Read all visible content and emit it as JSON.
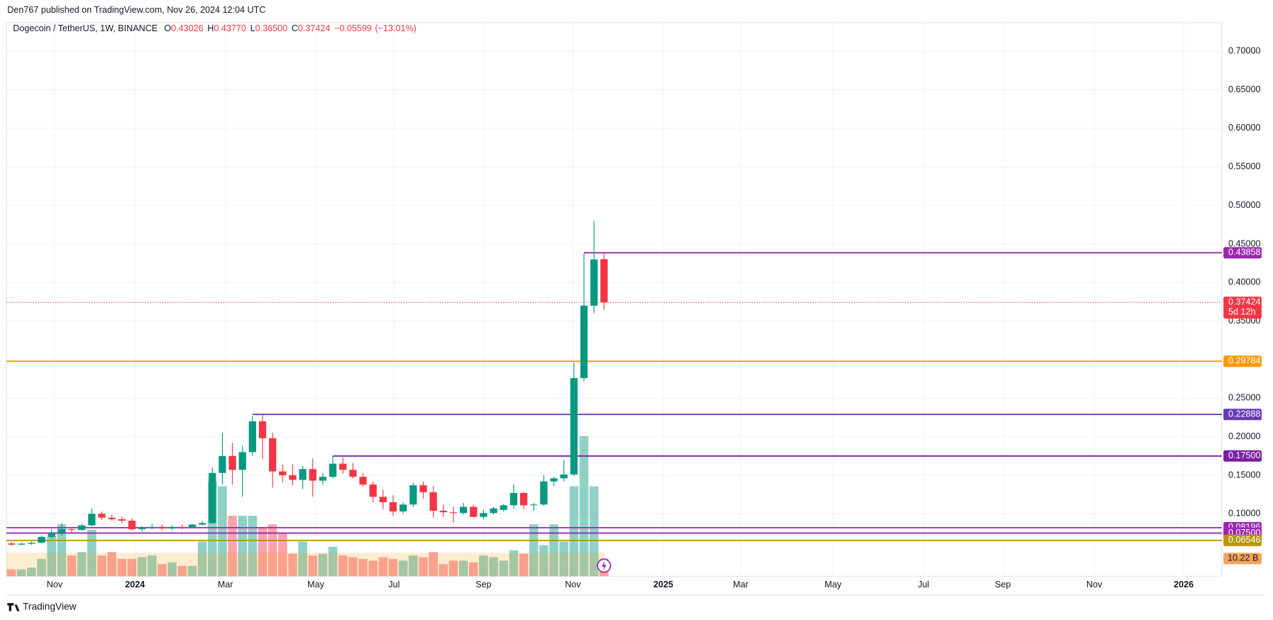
{
  "chart_data": {
    "type": "candlestick",
    "publisher": "Den767 published on TradingView.com, Nov 26, 2024 12:04 UTC",
    "symbol": "Dogecoin / TetherUS, 1W, BINANCE",
    "ohlc_legend": [
      {
        "name": "O",
        "value": {
          "value": 0.43026,
          "label": "0.43026"
        }
      },
      {
        "name": "H",
        "value": {
          "value": 0.4377,
          "label": "0.43770"
        }
      },
      {
        "name": "L",
        "value": {
          "value": 0.365,
          "label": "0.36500"
        }
      },
      {
        "name": "C",
        "value": {
          "value": 0.37424,
          "label": "0.37424"
        }
      }
    ],
    "change": {
      "value": -0.05599,
      "label": "−0.05599"
    },
    "change_percent": {
      "value": -13.01,
      "label": "(−13.01%)"
    },
    "up_color": "#089981",
    "down_color": "#f23645",
    "x": [
      0,
      1,
      2,
      3,
      4,
      5,
      6,
      7,
      8,
      9,
      10,
      11,
      12,
      13,
      14,
      15,
      16,
      17,
      18,
      19,
      20,
      21,
      22,
      23,
      24,
      25,
      26,
      27,
      28,
      29,
      30,
      31,
      32,
      33,
      34,
      35,
      36,
      37,
      38,
      39,
      40,
      41,
      42,
      43,
      44,
      45,
      46,
      47,
      48,
      49,
      50,
      51,
      52,
      53,
      54,
      55,
      56,
      57,
      58,
      59
    ],
    "open": [
      0.0615,
      0.06,
      0.0612,
      0.0625,
      0.07,
      0.075,
      0.08,
      0.079,
      0.085,
      0.1,
      0.095,
      0.093,
      0.091,
      0.08,
      0.082,
      0.083,
      0.081,
      0.083,
      0.082,
      0.086,
      0.088,
      0.153,
      0.175,
      0.157,
      0.18,
      0.22,
      0.198,
      0.155,
      0.15,
      0.144,
      0.158,
      0.143,
      0.148,
      0.165,
      0.157,
      0.148,
      0.138,
      0.122,
      0.115,
      0.103,
      0.112,
      0.137,
      0.128,
      0.104,
      0.102,
      0.101,
      0.109,
      0.096,
      0.101,
      0.105,
      0.111,
      0.127,
      0.111,
      0.112,
      0.142,
      0.146,
      0.151,
      0.276,
      0.37,
      0.43026
    ],
    "high": [
      0.0635,
      0.0625,
      0.064,
      0.072,
      0.08,
      0.088,
      0.082,
      0.087,
      0.107,
      0.103,
      0.099,
      0.096,
      0.094,
      0.084,
      0.087,
      0.086,
      0.085,
      0.086,
      0.087,
      0.091,
      0.16,
      0.205,
      0.192,
      0.188,
      0.227,
      0.228,
      0.205,
      0.164,
      0.164,
      0.162,
      0.172,
      0.153,
      0.175,
      0.173,
      0.166,
      0.153,
      0.142,
      0.131,
      0.124,
      0.115,
      0.14,
      0.142,
      0.136,
      0.112,
      0.109,
      0.114,
      0.112,
      0.105,
      0.109,
      0.113,
      0.138,
      0.128,
      0.114,
      0.15,
      0.148,
      0.17,
      0.296,
      0.438,
      0.48,
      0.4377
    ],
    "low": [
      0.0585,
      0.059,
      0.06,
      0.062,
      0.068,
      0.072,
      0.076,
      0.078,
      0.084,
      0.092,
      0.091,
      0.088,
      0.078,
      0.077,
      0.08,
      0.079,
      0.079,
      0.08,
      0.081,
      0.085,
      0.087,
      0.138,
      0.138,
      0.122,
      0.175,
      0.171,
      0.134,
      0.141,
      0.137,
      0.132,
      0.122,
      0.138,
      0.146,
      0.152,
      0.146,
      0.135,
      0.115,
      0.106,
      0.097,
      0.1,
      0.109,
      0.12,
      0.095,
      0.096,
      0.088,
      0.099,
      0.095,
      0.093,
      0.099,
      0.103,
      0.106,
      0.106,
      0.104,
      0.11,
      0.136,
      0.142,
      0.149,
      0.272,
      0.36,
      0.365
    ],
    "close": [
      0.06,
      0.0612,
      0.0625,
      0.07,
      0.075,
      0.08,
      0.079,
      0.085,
      0.1,
      0.095,
      0.093,
      0.091,
      0.08,
      0.082,
      0.083,
      0.081,
      0.083,
      0.082,
      0.086,
      0.088,
      0.153,
      0.175,
      0.157,
      0.18,
      0.22,
      0.198,
      0.155,
      0.15,
      0.144,
      0.158,
      0.143,
      0.148,
      0.165,
      0.157,
      0.148,
      0.138,
      0.122,
      0.115,
      0.103,
      0.112,
      0.137,
      0.128,
      0.104,
      0.102,
      0.101,
      0.109,
      0.096,
      0.101,
      0.107,
      0.111,
      0.127,
      0.111,
      0.112,
      0.142,
      0.146,
      0.151,
      0.276,
      0.37,
      0.43,
      0.37424
    ],
    "volume": [
      4,
      4,
      5,
      10,
      23,
      30,
      12,
      14,
      27,
      12,
      14,
      10,
      10,
      11,
      12,
      7,
      8,
      6,
      6,
      20,
      55,
      52,
      35,
      35,
      35,
      28,
      30,
      25,
      13,
      20,
      12,
      13,
      17,
      12,
      11,
      10,
      9,
      11,
      10,
      9,
      12,
      11,
      14,
      7,
      9,
      9,
      8,
      12,
      11,
      9,
      15,
      13,
      30,
      18,
      30,
      20,
      52,
      81,
      52,
      10.22
    ],
    "volume_last_label": "10.22 B",
    "volume_ylim": [
      0,
      320
    ],
    "bar_countdown": "5d 12h",
    "xlim": [
      -0.49,
      120.5
    ],
    "xticks": [
      {
        "value": 4.3,
        "label": "Nov"
      },
      {
        "value": 12.3,
        "label": "2024"
      },
      {
        "value": 21.3,
        "label": "Mar"
      },
      {
        "value": 30.3,
        "label": "May"
      },
      {
        "value": 38.1,
        "label": "Jul"
      },
      {
        "value": 47.0,
        "label": "Sep"
      },
      {
        "value": 55.9,
        "label": "Nov"
      },
      {
        "value": 64.9,
        "label": "2025"
      },
      {
        "value": 72.6,
        "label": "Mar"
      },
      {
        "value": 81.8,
        "label": "May"
      },
      {
        "value": 90.8,
        "label": "Jul"
      },
      {
        "value": 98.7,
        "label": "Sep"
      },
      {
        "value": 107.8,
        "label": "Nov"
      },
      {
        "value": 116.7,
        "label": "2026"
      }
    ],
    "ylim": [
      0.019,
      0.737
    ],
    "yticks": [
      {
        "value": 0.1,
        "label": "0.10000"
      },
      {
        "value": 0.15,
        "label": "0.15000"
      },
      {
        "value": 0.2,
        "label": "0.20000"
      },
      {
        "value": 0.25,
        "label": "0.25000"
      },
      {
        "value": 0.3,
        "label": "0.30000"
      },
      {
        "value": 0.35,
        "label": "0.35000"
      },
      {
        "value": 0.4,
        "label": "0.40000"
      },
      {
        "value": 0.45,
        "label": "0.45000"
      },
      {
        "value": 0.5,
        "label": "0.50000"
      },
      {
        "value": 0.55,
        "label": "0.55000"
      },
      {
        "value": 0.6,
        "label": "0.60000"
      },
      {
        "value": 0.65,
        "label": "0.65000"
      },
      {
        "value": 0.7,
        "label": "0.70000"
      }
    ],
    "grid": true,
    "levels": [
      {
        "value": {
          "value": 0.43858,
          "label": "0.43858"
        },
        "color": "#9c27b0",
        "x_start": 57
      },
      {
        "value": {
          "value": 0.29784,
          "label": "0.29784"
        },
        "color": "#ff9800",
        "x_start": -0.49
      },
      {
        "value": {
          "value": 0.22888,
          "label": "0.22888"
        },
        "color": "#673ab7",
        "x_start": 24
      },
      {
        "value": {
          "value": 0.175,
          "label": "0.17500"
        },
        "color": "#7b1fa2",
        "x_start": 32
      },
      {
        "value": {
          "value": 0.08196,
          "label": "0.08196"
        },
        "color": "#9c27b0",
        "x_start": -0.49
      },
      {
        "value": {
          "value": 0.075,
          "label": "0.07500"
        },
        "color": "#9c27b0",
        "x_start": -0.49
      },
      {
        "value": {
          "value": 0.06546,
          "label": "0.06546"
        },
        "color": "#b7950b",
        "x_start": -0.49
      }
    ],
    "footer": "TradingView"
  }
}
